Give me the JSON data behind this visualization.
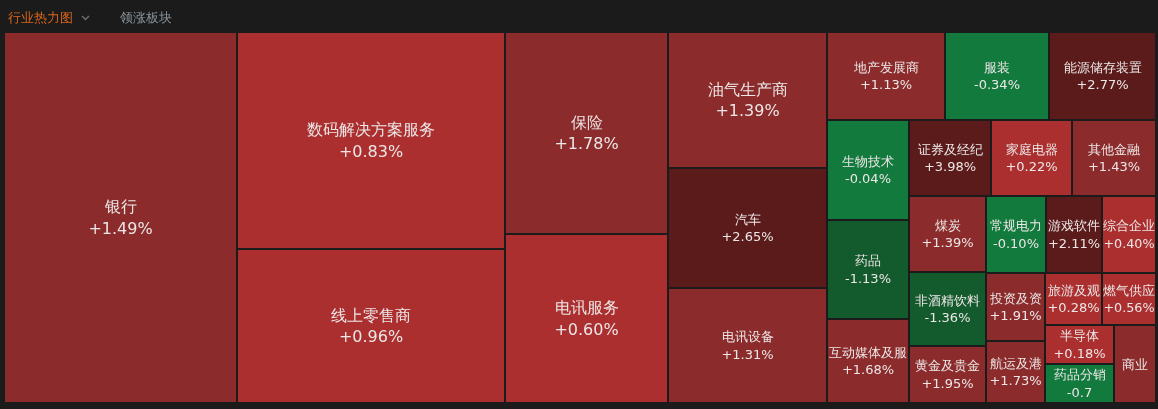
{
  "chart_data": {
    "type": "other",
    "title": "行业热力图",
    "subtitle": "领涨板块",
    "categories": [
      "银行",
      "数码解决方案服务",
      "线上零售商",
      "保险",
      "电讯服务",
      "油气生产商",
      "汽车",
      "电讯设备",
      "地产发展商",
      "服装",
      "能源储存装置",
      "生物技术",
      "药品",
      "互动媒体及服",
      "证券及经纪",
      "家庭电器",
      "其他金融",
      "煤炭",
      "非酒精饮料",
      "黄金及贵金",
      "常规电力",
      "游戏软件",
      "综合企业",
      "投资及资",
      "航运及港",
      "旅游及观",
      "燃气供应",
      "半导体",
      "药品分销",
      "商业"
    ],
    "values": [
      1.49,
      0.83,
      0.96,
      1.78,
      0.6,
      1.39,
      2.65,
      1.31,
      1.13,
      -0.34,
      2.77,
      -0.04,
      -1.13,
      1.68,
      3.98,
      0.22,
      1.43,
      1.39,
      -1.36,
      1.95,
      -0.1,
      2.11,
      0.4,
      1.91,
      1.73,
      0.28,
      0.56,
      0.18,
      -0.7,
      null
    ],
    "value_labels": [
      "+1.49%",
      "+0.83%",
      "+0.96%",
      "+1.78%",
      "+0.60%",
      "+1.39%",
      "+2.65%",
      "+1.31%",
      "+1.13%",
      "-0.34%",
      "+2.77%",
      "-0.04%",
      "-1.13%",
      "+1.68%",
      "+3.98%",
      "+0.22%",
      "+1.43%",
      "+1.39%",
      "-1.36%",
      "+1.95%",
      "-0.10%",
      "+2.11%",
      "+0.40%",
      "+1.91%",
      "+1.73%",
      "+0.28%",
      "+0.56%",
      "+0.18%",
      "-0.7",
      null
    ],
    "colors": [
      "#8b2b2b",
      "#ac2f2f",
      "#ac2f2f",
      "#8b2b2b",
      "#ac2f2f",
      "#8b2b2b",
      "#5a1b1a",
      "#8b2b2b",
      "#8b2b2b",
      "#137a3d",
      "#5a1b1a",
      "#137a3d",
      "#135a2c",
      "#8b2b2b",
      "#5a1b1a",
      "#ac2f2f",
      "#8b2b2b",
      "#8b2b2b",
      "#135a2c",
      "#8b2b2b",
      "#137a3d",
      "#5a1b1a",
      "#ac2f2f",
      "#8b2b2b",
      "#8b2b2b",
      "#ac2f2f",
      "#ac2f2f",
      "#ac2f2f",
      "#137a3d",
      "#8b2b2b"
    ]
  }
}
